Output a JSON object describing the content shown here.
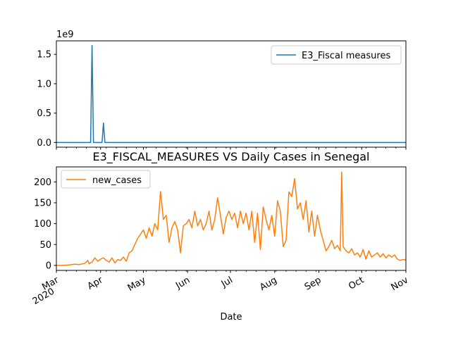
{
  "chart_data": [
    {
      "type": "line",
      "title": "",
      "xlabel": "",
      "ylabel": "",
      "offset_label": "1e9",
      "xlim": [
        "2020-03-01",
        "2020-11-01"
      ],
      "ylim": [
        -0.08,
        1.73
      ],
      "y_ticks": [
        0.0,
        0.5,
        1.0,
        1.5
      ],
      "y_tick_labels": [
        "0.0",
        "0.5",
        "1.0",
        "1.5"
      ],
      "legend_position": "upper right",
      "grid": false,
      "series": [
        {
          "name": "E3_Fiscal measures",
          "color": "#1f77b4",
          "points": [
            [
              "2020-03-01",
              0
            ],
            [
              "2020-03-25",
              0
            ],
            [
              "2020-03-26",
              1.65
            ],
            [
              "2020-03-27",
              0
            ],
            [
              "2020-04-02",
              0
            ],
            [
              "2020-04-03",
              0.33
            ],
            [
              "2020-04-04",
              0
            ],
            [
              "2020-11-01",
              0
            ]
          ]
        }
      ]
    },
    {
      "type": "line",
      "title": "E3_FISCAL_MEASURES VS Daily Cases in Senegal",
      "xlabel": "Date",
      "ylabel": "",
      "xlim": [
        "2020-03-01",
        "2020-11-01"
      ],
      "ylim": [
        -12,
        236
      ],
      "y_ticks": [
        0,
        50,
        100,
        150,
        200
      ],
      "y_tick_labels": [
        "0",
        "50",
        "100",
        "150",
        "200"
      ],
      "x_ticks": [
        "2020-03-01",
        "2020-04-01",
        "2020-05-01",
        "2020-06-01",
        "2020-07-01",
        "2020-08-01",
        "2020-09-01",
        "2020-10-01",
        "2020-11-01"
      ],
      "x_tick_labels": [
        [
          "Mar",
          "2020"
        ],
        [
          "Apr"
        ],
        [
          "May"
        ],
        [
          "Jun"
        ],
        [
          "Jul"
        ],
        [
          "Aug"
        ],
        [
          "Sep"
        ],
        [
          "Oct"
        ],
        [
          "Nov"
        ]
      ],
      "legend_position": "upper left",
      "grid": false,
      "series": [
        {
          "name": "new_cases",
          "color": "#ff7f0e",
          "points": [
            [
              "2020-03-01",
              0
            ],
            [
              "2020-03-05",
              0
            ],
            [
              "2020-03-10",
              1
            ],
            [
              "2020-03-14",
              3
            ],
            [
              "2020-03-17",
              2
            ],
            [
              "2020-03-21",
              5
            ],
            [
              "2020-03-23",
              12
            ],
            [
              "2020-03-24",
              4
            ],
            [
              "2020-03-26",
              8
            ],
            [
              "2020-03-28",
              18
            ],
            [
              "2020-03-30",
              10
            ],
            [
              "2020-04-01",
              15
            ],
            [
              "2020-04-03",
              18
            ],
            [
              "2020-04-05",
              12
            ],
            [
              "2020-04-07",
              8
            ],
            [
              "2020-04-09",
              18
            ],
            [
              "2020-04-11",
              6
            ],
            [
              "2020-04-13",
              14
            ],
            [
              "2020-04-15",
              12
            ],
            [
              "2020-04-17",
              20
            ],
            [
              "2020-04-19",
              10
            ],
            [
              "2020-04-21",
              30
            ],
            [
              "2020-04-23",
              35
            ],
            [
              "2020-04-25",
              50
            ],
            [
              "2020-04-27",
              65
            ],
            [
              "2020-04-29",
              75
            ],
            [
              "2020-05-01",
              85
            ],
            [
              "2020-05-03",
              65
            ],
            [
              "2020-05-05",
              90
            ],
            [
              "2020-05-07",
              70
            ],
            [
              "2020-05-09",
              100
            ],
            [
              "2020-05-11",
              85
            ],
            [
              "2020-05-13",
              177
            ],
            [
              "2020-05-15",
              110
            ],
            [
              "2020-05-17",
              120
            ],
            [
              "2020-05-19",
              55
            ],
            [
              "2020-05-21",
              90
            ],
            [
              "2020-05-23",
              105
            ],
            [
              "2020-05-25",
              85
            ],
            [
              "2020-05-27",
              30
            ],
            [
              "2020-05-29",
              95
            ],
            [
              "2020-05-31",
              100
            ],
            [
              "2020-06-02",
              110
            ],
            [
              "2020-06-04",
              90
            ],
            [
              "2020-06-06",
              130
            ],
            [
              "2020-06-08",
              95
            ],
            [
              "2020-06-10",
              110
            ],
            [
              "2020-06-12",
              85
            ],
            [
              "2020-06-14",
              100
            ],
            [
              "2020-06-16",
              130
            ],
            [
              "2020-06-18",
              85
            ],
            [
              "2020-06-20",
              110
            ],
            [
              "2020-06-22",
              162
            ],
            [
              "2020-06-24",
              120
            ],
            [
              "2020-06-26",
              75
            ],
            [
              "2020-06-28",
              115
            ],
            [
              "2020-06-30",
              130
            ],
            [
              "2020-07-02",
              110
            ],
            [
              "2020-07-04",
              125
            ],
            [
              "2020-07-06",
              90
            ],
            [
              "2020-07-08",
              130
            ],
            [
              "2020-07-10",
              100
            ],
            [
              "2020-07-12",
              125
            ],
            [
              "2020-07-14",
              85
            ],
            [
              "2020-07-16",
              130
            ],
            [
              "2020-07-18",
              55
            ],
            [
              "2020-07-20",
              125
            ],
            [
              "2020-07-22",
              38
            ],
            [
              "2020-07-24",
              140
            ],
            [
              "2020-07-26",
              110
            ],
            [
              "2020-07-28",
              85
            ],
            [
              "2020-07-30",
              120
            ],
            [
              "2020-08-01",
              70
            ],
            [
              "2020-08-03",
              155
            ],
            [
              "2020-08-05",
              130
            ],
            [
              "2020-08-07",
              45
            ],
            [
              "2020-08-09",
              60
            ],
            [
              "2020-08-11",
              176
            ],
            [
              "2020-08-13",
              165
            ],
            [
              "2020-08-15",
              208
            ],
            [
              "2020-08-17",
              135
            ],
            [
              "2020-08-19",
              150
            ],
            [
              "2020-08-21",
              110
            ],
            [
              "2020-08-23",
              155
            ],
            [
              "2020-08-25",
              80
            ],
            [
              "2020-08-27",
              130
            ],
            [
              "2020-08-29",
              70
            ],
            [
              "2020-08-31",
              120
            ],
            [
              "2020-09-02",
              85
            ],
            [
              "2020-09-04",
              60
            ],
            [
              "2020-09-06",
              35
            ],
            [
              "2020-09-08",
              45
            ],
            [
              "2020-09-10",
              60
            ],
            [
              "2020-09-12",
              40
            ],
            [
              "2020-09-14",
              48
            ],
            [
              "2020-09-16",
              35
            ],
            [
              "2020-09-17",
              224
            ],
            [
              "2020-09-18",
              45
            ],
            [
              "2020-09-20",
              35
            ],
            [
              "2020-09-22",
              30
            ],
            [
              "2020-09-24",
              40
            ],
            [
              "2020-09-26",
              25
            ],
            [
              "2020-09-28",
              30
            ],
            [
              "2020-09-30",
              20
            ],
            [
              "2020-10-02",
              38
            ],
            [
              "2020-10-04",
              15
            ],
            [
              "2020-10-06",
              35
            ],
            [
              "2020-10-08",
              20
            ],
            [
              "2020-10-10",
              25
            ],
            [
              "2020-10-12",
              30
            ],
            [
              "2020-10-14",
              20
            ],
            [
              "2020-10-16",
              28
            ],
            [
              "2020-10-18",
              18
            ],
            [
              "2020-10-20",
              25
            ],
            [
              "2020-10-22",
              20
            ],
            [
              "2020-10-24",
              25
            ],
            [
              "2020-10-26",
              15
            ],
            [
              "2020-10-28",
              12
            ],
            [
              "2020-10-30",
              14
            ],
            [
              "2020-11-01",
              13
            ]
          ]
        }
      ]
    }
  ]
}
